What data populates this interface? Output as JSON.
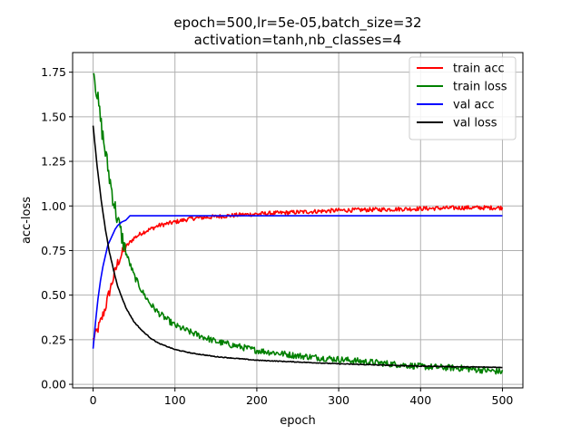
{
  "chart_data": {
    "type": "line",
    "title_lines": [
      "epoch=500,lr=5e-05,batch_size=32",
      "activation=tanh,nb_classes=4"
    ],
    "xlabel": "epoch",
    "ylabel": "acc-loss",
    "xlim": [
      -25,
      525
    ],
    "ylim": [
      -0.02,
      1.86
    ],
    "x_ticks": [
      0,
      100,
      200,
      300,
      400,
      500
    ],
    "y_ticks": [
      0.0,
      0.25,
      0.5,
      0.75,
      1.0,
      1.25,
      1.5,
      1.75
    ],
    "x_tick_labels": [
      "0",
      "100",
      "200",
      "300",
      "400",
      "500"
    ],
    "y_tick_labels": [
      "0.00",
      "0.25",
      "0.50",
      "0.75",
      "1.00",
      "1.25",
      "1.50",
      "1.75"
    ],
    "grid": true,
    "legend_position": "top-right",
    "series": [
      {
        "name": "train acc",
        "color": "#ff0000",
        "x": [
          0,
          5,
          10,
          15,
          20,
          25,
          30,
          35,
          40,
          50,
          60,
          70,
          80,
          100,
          120,
          150,
          180,
          200,
          250,
          300,
          350,
          400,
          450,
          500
        ],
        "y": [
          0.25,
          0.3,
          0.36,
          0.43,
          0.52,
          0.6,
          0.68,
          0.73,
          0.77,
          0.82,
          0.85,
          0.87,
          0.89,
          0.91,
          0.93,
          0.94,
          0.95,
          0.955,
          0.965,
          0.975,
          0.98,
          0.985,
          0.99,
          0.99
        ]
      },
      {
        "name": "train loss",
        "color": "#008000",
        "x": [
          0,
          5,
          10,
          15,
          20,
          25,
          30,
          40,
          50,
          60,
          70,
          80,
          100,
          120,
          150,
          200,
          250,
          300,
          350,
          400,
          450,
          500
        ],
        "y": [
          1.79,
          1.62,
          1.45,
          1.3,
          1.16,
          1.03,
          0.92,
          0.74,
          0.61,
          0.52,
          0.45,
          0.4,
          0.33,
          0.29,
          0.24,
          0.19,
          0.16,
          0.14,
          0.12,
          0.1,
          0.09,
          0.07
        ]
      },
      {
        "name": "val acc",
        "color": "#0000ff",
        "x": [
          0,
          3,
          6,
          9,
          12,
          15,
          18,
          21,
          24,
          27,
          30,
          35,
          40,
          45,
          50,
          100,
          150,
          200,
          300,
          400,
          500
        ],
        "y": [
          0.2,
          0.35,
          0.48,
          0.58,
          0.66,
          0.72,
          0.78,
          0.81,
          0.84,
          0.87,
          0.89,
          0.91,
          0.92,
          0.945,
          0.945,
          0.945,
          0.945,
          0.945,
          0.945,
          0.945,
          0.945
        ]
      },
      {
        "name": "val loss",
        "color": "#000000",
        "x": [
          0,
          5,
          10,
          15,
          20,
          25,
          30,
          40,
          50,
          60,
          70,
          80,
          100,
          120,
          150,
          200,
          250,
          300,
          350,
          400,
          450,
          500
        ],
        "y": [
          1.45,
          1.22,
          1.03,
          0.87,
          0.74,
          0.64,
          0.55,
          0.43,
          0.35,
          0.3,
          0.26,
          0.23,
          0.195,
          0.175,
          0.155,
          0.135,
          0.125,
          0.115,
          0.108,
          0.102,
          0.098,
          0.095
        ]
      }
    ]
  }
}
